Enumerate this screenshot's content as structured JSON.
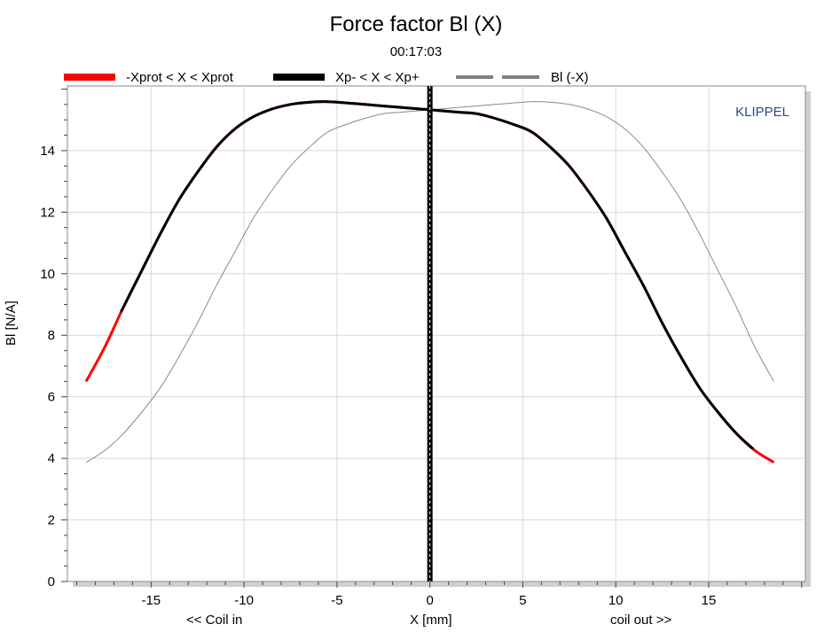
{
  "chart_data": {
    "type": "line",
    "title": "Force factor Bl (X)",
    "subtitle": "00:17:03",
    "brand": "KLIPPEL",
    "xlabel": "X [mm]",
    "xlabel_left": "<< Coil in",
    "xlabel_right": "coil out >>",
    "ylabel": "Bl [N/A]",
    "xlim": [
      -19.5,
      20.2
    ],
    "ylim": [
      0,
      16.1
    ],
    "x_ticks": [
      -15,
      -10,
      -5,
      0,
      5,
      10,
      15
    ],
    "y_ticks": [
      0,
      2,
      4,
      6,
      8,
      10,
      12,
      14
    ],
    "grid": true,
    "legend_position": "top",
    "series": [
      {
        "name": "-Xprot < X < Xprot",
        "color": "#ff0000",
        "style": "thick-solid",
        "x": [
          -18.5,
          -17.5,
          -16.5,
          -15.5,
          -14.5,
          -13.5,
          -12.5,
          -11.5,
          -10.5,
          -9.5,
          -8.5,
          -7.5,
          -6.5,
          -5.5,
          -4.5,
          -3.5,
          -2.5,
          -1.5,
          -0.5,
          0,
          0.5,
          1.5,
          2.5,
          3.5,
          4.5,
          5.5,
          6.5,
          7.5,
          8.5,
          9.5,
          10.5,
          11.5,
          12.5,
          13.5,
          14.5,
          15.5,
          16.5,
          17.5,
          18.5
        ],
        "y": [
          6.5,
          7.6,
          8.9,
          10.1,
          11.3,
          12.4,
          13.3,
          14.1,
          14.7,
          15.1,
          15.35,
          15.5,
          15.57,
          15.59,
          15.55,
          15.5,
          15.45,
          15.4,
          15.35,
          15.33,
          15.3,
          15.25,
          15.2,
          15.05,
          14.85,
          14.6,
          14.1,
          13.5,
          12.7,
          11.8,
          10.7,
          9.6,
          8.4,
          7.3,
          6.3,
          5.5,
          4.8,
          4.25,
          3.87
        ]
      },
      {
        "name": "Xp- < X < Xp+",
        "color": "#000000",
        "style": "thick-solid",
        "x_range": [
          -16.6,
          17.4
        ]
      },
      {
        "name": "Bl (-X)",
        "color": "#808080",
        "style": "dashed",
        "x": [
          -18.5,
          -17.5,
          -16.5,
          -15.5,
          -14.5,
          -13.5,
          -12.5,
          -11.5,
          -10.5,
          -9.5,
          -8.5,
          -7.5,
          -6.5,
          -5.5,
          -4.5,
          -3.5,
          -2.5,
          -1.5,
          -0.5,
          0,
          0.5,
          1.5,
          2.5,
          3.5,
          4.5,
          5.5,
          6.5,
          7.5,
          8.5,
          9.5,
          10.5,
          11.5,
          12.5,
          13.5,
          14.5,
          15.5,
          16.5,
          17.5,
          18.5
        ],
        "y": [
          3.87,
          4.25,
          4.8,
          5.5,
          6.3,
          7.3,
          8.4,
          9.6,
          10.7,
          11.8,
          12.7,
          13.5,
          14.1,
          14.6,
          14.85,
          15.05,
          15.2,
          15.25,
          15.3,
          15.33,
          15.35,
          15.4,
          15.45,
          15.5,
          15.55,
          15.59,
          15.57,
          15.5,
          15.35,
          15.1,
          14.7,
          14.1,
          13.3,
          12.4,
          11.3,
          10.1,
          8.9,
          7.6,
          6.5
        ]
      }
    ],
    "marker_line": {
      "x": 0,
      "color": "#000000"
    }
  }
}
